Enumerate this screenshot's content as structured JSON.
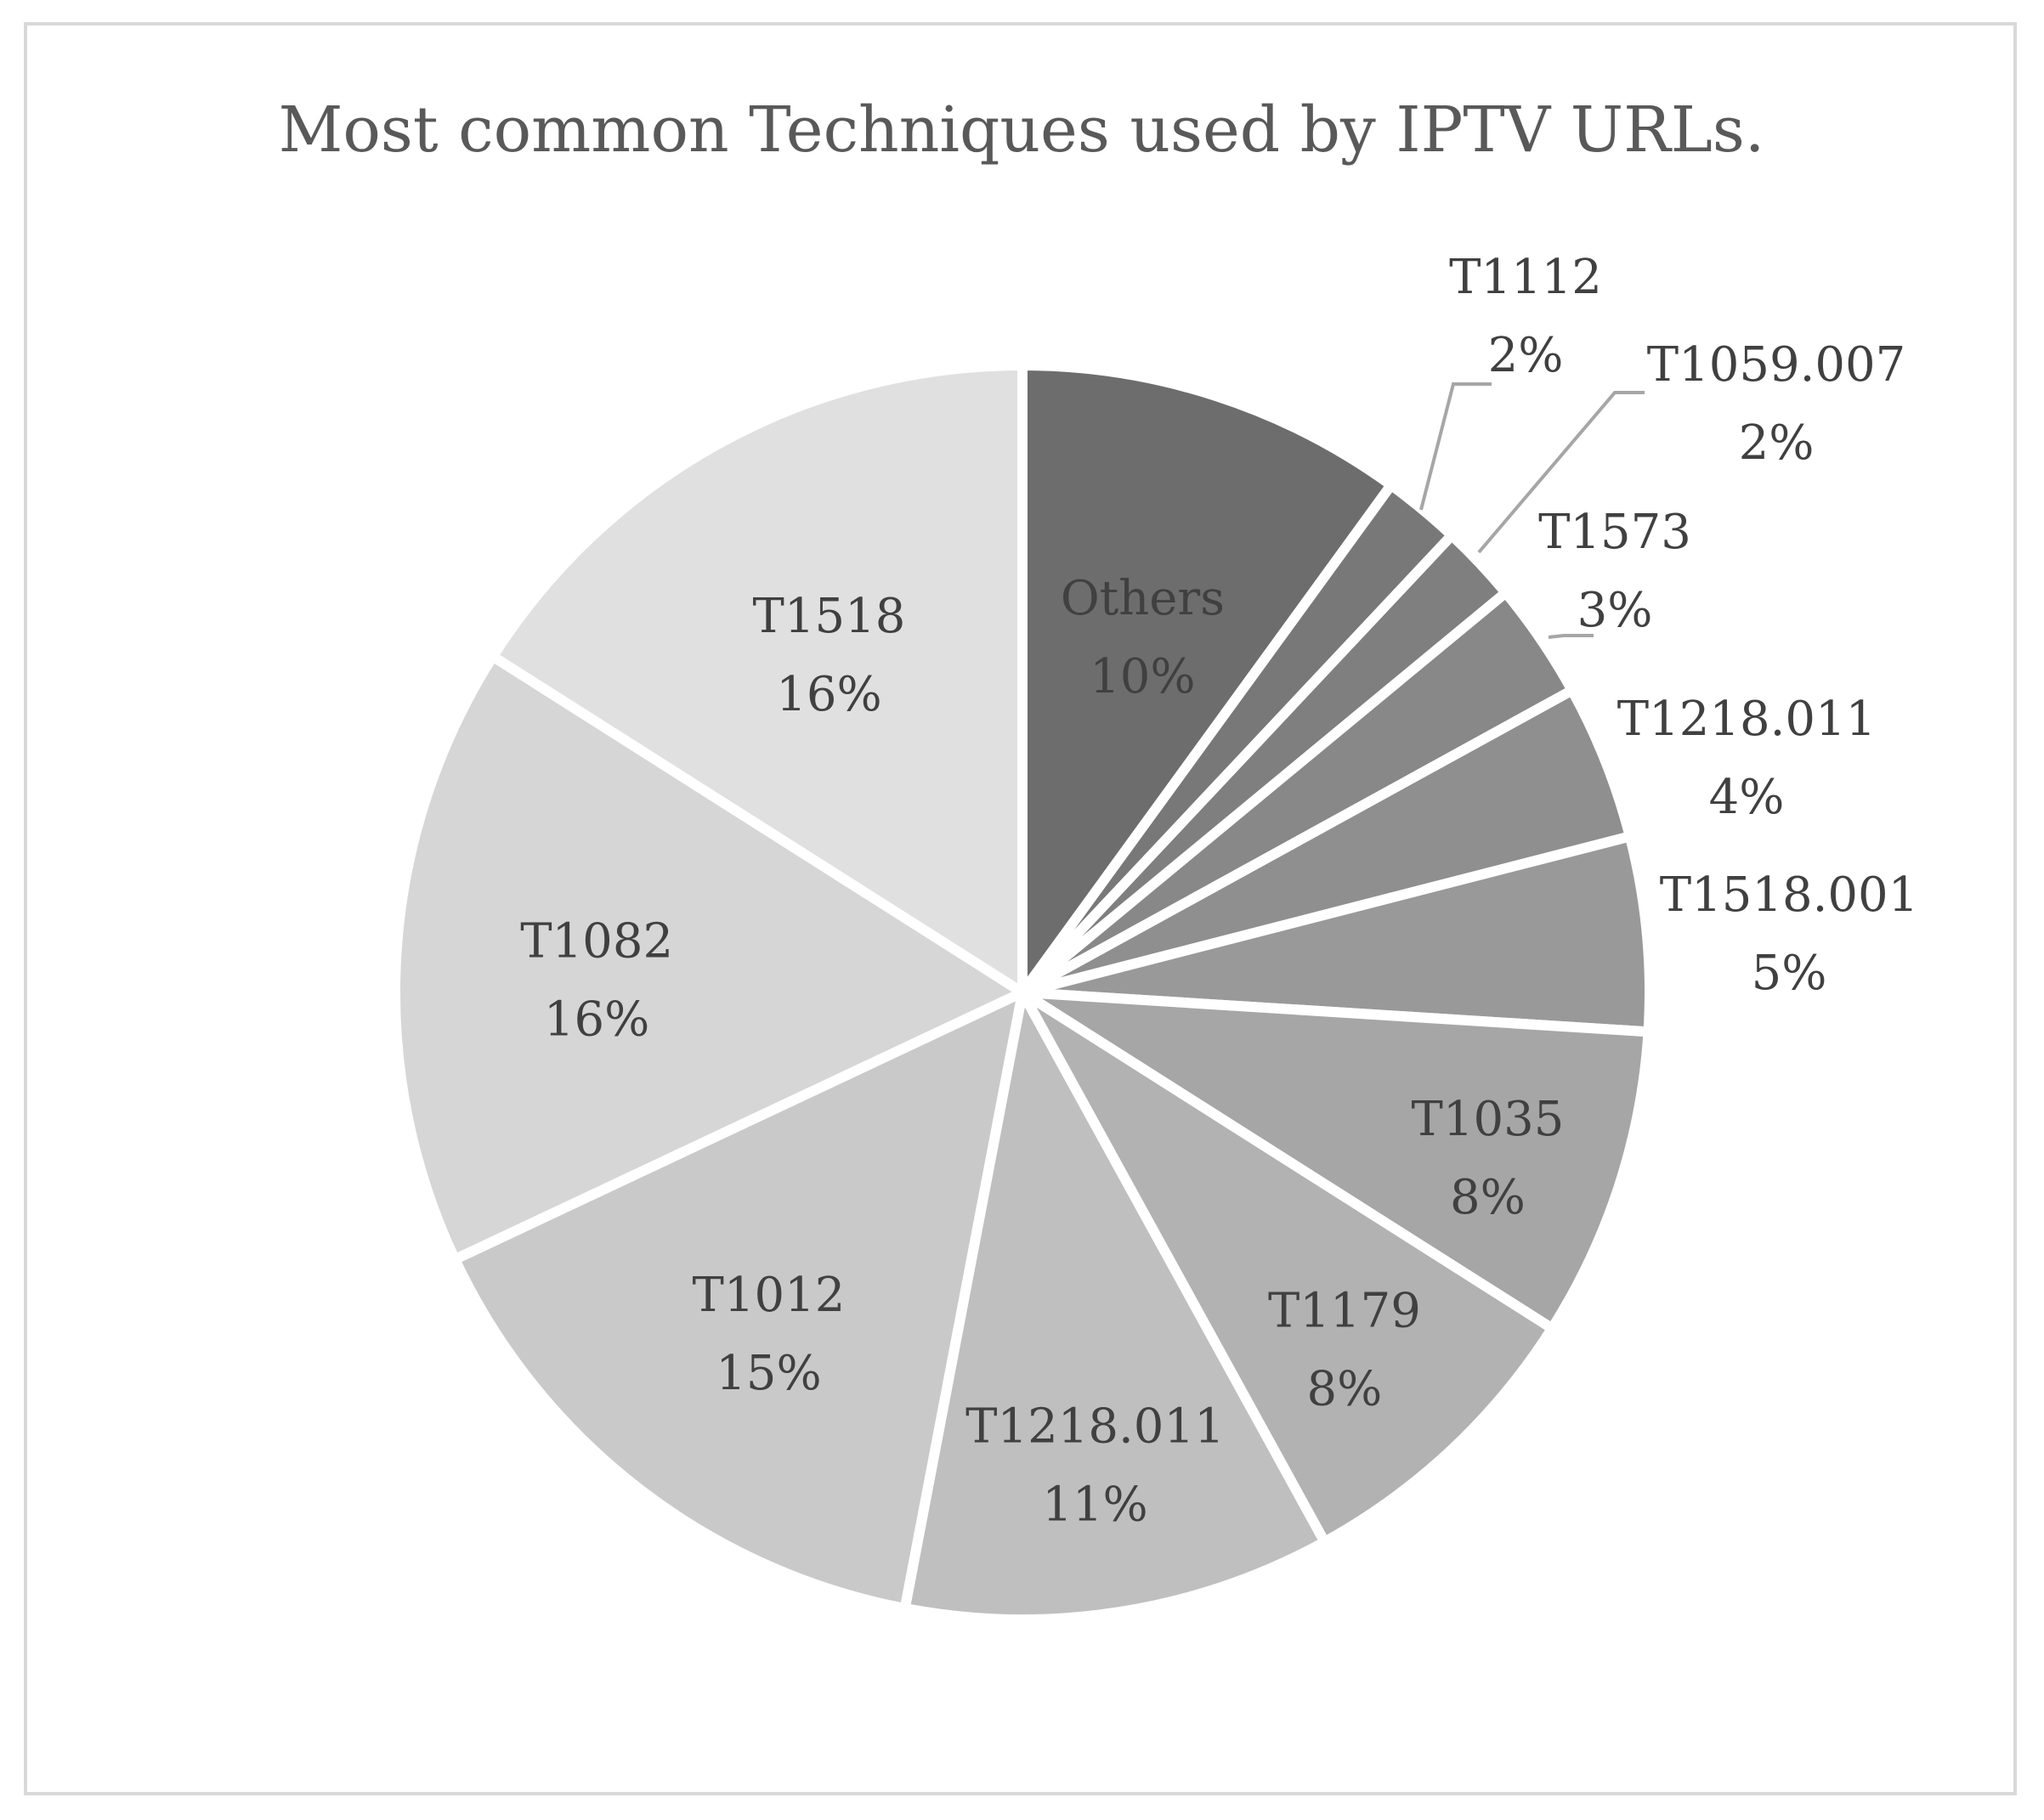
{
  "chart_data": {
    "type": "pie",
    "title": "Most common Techniques used by IPTV URLs.",
    "slices": [
      {
        "label": "Others",
        "value": 10,
        "value_label": "10%",
        "color": "#6d6d6d",
        "label_color": "#4a4a4a"
      },
      {
        "label": "T1112",
        "value": 2,
        "value_label": "2%",
        "color": "#787878",
        "label_color": "#404040"
      },
      {
        "label": "T1059.007",
        "value": 2,
        "value_label": "2%",
        "color": "#7f7f7f",
        "label_color": "#404040"
      },
      {
        "label": "T1573",
        "value": 3,
        "value_label": "3%",
        "color": "#888888",
        "label_color": "#404040"
      },
      {
        "label": "T1218.011",
        "value": 4,
        "value_label": "4%",
        "color": "#8f8f8f",
        "label_color": "#404040"
      },
      {
        "label": "T1518.001",
        "value": 5,
        "value_label": "5%",
        "color": "#999999",
        "label_color": "#404040"
      },
      {
        "label": "T1035",
        "value": 8,
        "value_label": "8%",
        "color": "#a6a6a6",
        "label_color": "#404040"
      },
      {
        "label": "T1179",
        "value": 8,
        "value_label": "8%",
        "color": "#b2b2b2",
        "label_color": "#404040"
      },
      {
        "label": "T1218.011",
        "value": 11,
        "value_label": "11%",
        "color": "#bfbfbf",
        "label_color": "#404040"
      },
      {
        "label": "T1012",
        "value": 15,
        "value_label": "15%",
        "color": "#c9c9c9",
        "label_color": "#404040"
      },
      {
        "label": "T1082",
        "value": 16,
        "value_label": "16%",
        "color": "#d6d6d6",
        "label_color": "#404040"
      },
      {
        "label": "T1518",
        "value": 16,
        "value_label": "16%",
        "color": "#e0e0e0",
        "label_color": "#404040"
      }
    ],
    "legend": "none"
  }
}
